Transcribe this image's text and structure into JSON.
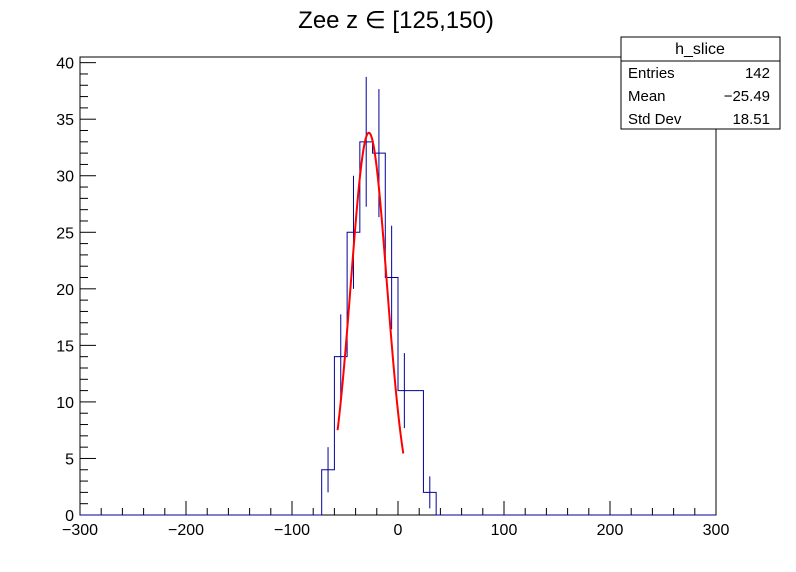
{
  "chart_data": {
    "type": "histogram",
    "title": "Zee z ∈ [125,150)",
    "xlabel": "",
    "ylabel": "",
    "xlim": [
      -300,
      300
    ],
    "ylim": [
      0,
      40.5
    ],
    "x_ticks": [
      -300,
      -200,
      -100,
      0,
      100,
      200,
      300
    ],
    "x_tick_labels": [
      "−300",
      "−200",
      "−100",
      "0",
      "100",
      "200",
      "300"
    ],
    "y_ticks": [
      0,
      5,
      10,
      15,
      20,
      25,
      30,
      35,
      40
    ],
    "y_tick_labels": [
      "0",
      "5",
      "10",
      "15",
      "20",
      "25",
      "30",
      "35",
      "40"
    ],
    "grid": false,
    "bin_width": 12,
    "bins": [
      {
        "x_low": -72,
        "x_high": -60,
        "count": 4
      },
      {
        "x_low": -60,
        "x_high": -48,
        "count": 14
      },
      {
        "x_low": -48,
        "x_high": -36,
        "count": 25
      },
      {
        "x_low": -36,
        "x_high": -24,
        "count": 33
      },
      {
        "x_low": -24,
        "x_high": -12,
        "count": 32
      },
      {
        "x_low": -12,
        "x_high": 0,
        "count": 21
      },
      {
        "x_low": 0,
        "x_high": 12,
        "count": 11
      },
      {
        "x_low": 24,
        "x_high": 36,
        "count": 2
      }
    ],
    "fit": {
      "type": "gaussian",
      "color": "#ff0000",
      "constant": 33.8,
      "mean": -27.5,
      "sigma": 17.0,
      "range": [
        -57,
        5
      ]
    },
    "stats_box": {
      "title": "h_slice",
      "rows": [
        {
          "label": "Entries",
          "value": "142"
        },
        {
          "label": "Mean",
          "value": "−25.49"
        },
        {
          "label": "Std Dev",
          "value": "18.51"
        }
      ]
    },
    "colors": {
      "histogram": "#000099",
      "fit": "#ff0000",
      "axes": "#000000"
    }
  }
}
